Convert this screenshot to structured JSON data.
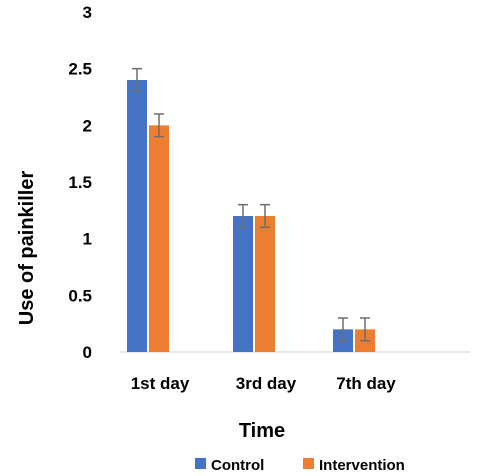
{
  "chart_data": {
    "type": "bar",
    "title": "",
    "xlabel": "Time",
    "ylabel": "Use of painkiller",
    "categories": [
      "1st day",
      "3rd day",
      "7th day"
    ],
    "series": [
      {
        "name": "Control",
        "color": "#4472C4",
        "values": [
          2.4,
          1.2,
          0.2
        ],
        "errors": [
          0.1,
          0.1,
          0.1
        ]
      },
      {
        "name": "Intervention",
        "color": "#ED7D31",
        "values": [
          2.0,
          1.2,
          0.2
        ],
        "errors": [
          0.1,
          0.1,
          0.1
        ]
      }
    ],
    "ylim": [
      0,
      3
    ],
    "yticks": [
      "0",
      "0.5",
      "1",
      "1.5",
      "2",
      "2.5",
      "3"
    ],
    "grid": false,
    "legend_position": "bottom"
  }
}
